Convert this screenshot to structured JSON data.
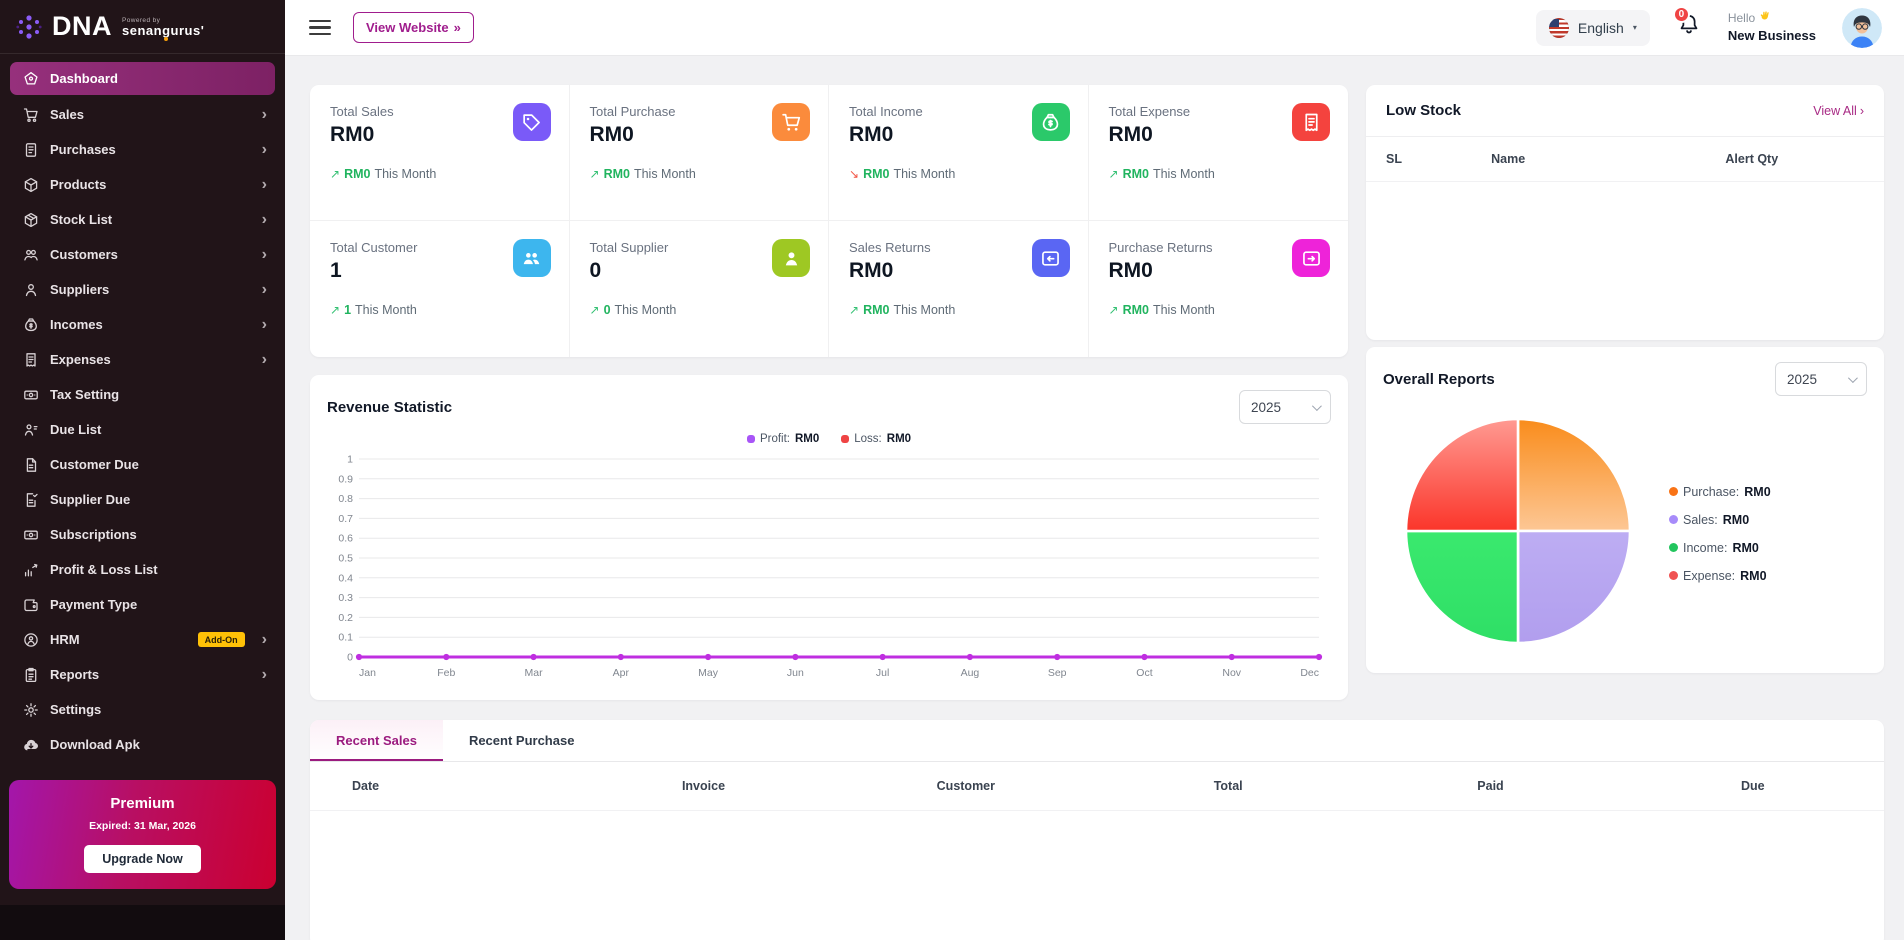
{
  "brand": {
    "name": "DNA",
    "powered_by": "Powered by",
    "powered_brand_pre": "senan",
    "powered_brand_g": "g",
    "powered_brand_post": "urus'"
  },
  "topbar": {
    "view_website_label": "View Website",
    "view_website_arrows": "»",
    "language": "English",
    "notification_badge": "0",
    "greeting": "Hello",
    "business_name": "New Business"
  },
  "sidebar": {
    "items": [
      {
        "label": "Dashboard",
        "icon": "dashboard-icon",
        "active": true,
        "chevron": false
      },
      {
        "label": "Sales",
        "icon": "cart-icon",
        "active": false,
        "chevron": true
      },
      {
        "label": "Purchases",
        "icon": "purchases-icon",
        "active": false,
        "chevron": true
      },
      {
        "label": "Products",
        "icon": "products-icon",
        "active": false,
        "chevron": true
      },
      {
        "label": "Stock List",
        "icon": "stock-list-icon",
        "active": false,
        "chevron": true
      },
      {
        "label": "Customers",
        "icon": "customers-icon",
        "active": false,
        "chevron": true
      },
      {
        "label": "Suppliers",
        "icon": "suppliers-icon",
        "active": false,
        "chevron": true
      },
      {
        "label": "Incomes",
        "icon": "incomes-icon",
        "active": false,
        "chevron": true
      },
      {
        "label": "Expenses",
        "icon": "expenses-icon",
        "active": false,
        "chevron": true
      },
      {
        "label": "Tax Setting",
        "icon": "tax-setting-icon",
        "active": false,
        "chevron": false
      },
      {
        "label": "Due List",
        "icon": "due-list-icon",
        "active": false,
        "chevron": false
      },
      {
        "label": "Customer Due",
        "icon": "customer-due-icon",
        "active": false,
        "chevron": false
      },
      {
        "label": "Supplier Due",
        "icon": "supplier-due-icon",
        "active": false,
        "chevron": false
      },
      {
        "label": "Subscriptions",
        "icon": "subscriptions-icon",
        "active": false,
        "chevron": false
      },
      {
        "label": "Profit & Loss List",
        "icon": "profit-loss-icon",
        "active": false,
        "chevron": false
      },
      {
        "label": "Payment Type",
        "icon": "payment-type-icon",
        "active": false,
        "chevron": false
      },
      {
        "label": "HRM",
        "icon": "hrm-icon",
        "active": false,
        "chevron": true,
        "badge": "Add-On"
      },
      {
        "label": "Reports",
        "icon": "reports-icon",
        "active": false,
        "chevron": true
      },
      {
        "label": "Settings",
        "icon": "settings-icon",
        "active": false,
        "chevron": false
      },
      {
        "label": "Download Apk",
        "icon": "download-icon",
        "active": false,
        "chevron": false
      }
    ],
    "premium": {
      "title": "Premium",
      "expired": "Expired: 31 Mar, 2026",
      "button_label": "Upgrade Now"
    }
  },
  "stats": [
    {
      "label": "Total Sales",
      "value": "RM0",
      "trend_value": "RM0",
      "trend_suffix": "This Month",
      "trend": "up",
      "icon": "tag-icon",
      "color": "#7a5af8"
    },
    {
      "label": "Total Purchase",
      "value": "RM0",
      "trend_value": "RM0",
      "trend_suffix": "This Month",
      "trend": "up",
      "icon": "cart-stat-icon",
      "color": "#fb8b3c"
    },
    {
      "label": "Total Income",
      "value": "RM0",
      "trend_value": "RM0",
      "trend_suffix": "This Month",
      "trend": "down",
      "icon": "money-bag-icon",
      "color": "#2bc96a"
    },
    {
      "label": "Total Expense",
      "value": "RM0",
      "trend_value": "RM0",
      "trend_suffix": "This Month",
      "trend": "up",
      "icon": "receipt-stat-icon",
      "color": "#f4433e"
    },
    {
      "label": "Total Customer",
      "value": "1",
      "trend_value": "1",
      "trend_suffix": "This Month",
      "trend": "up",
      "icon": "users-stat-icon",
      "color": "#3db6ee"
    },
    {
      "label": "Total Supplier",
      "value": "0",
      "trend_value": "0",
      "trend_suffix": "This Month",
      "trend": "up",
      "icon": "user-badge-icon",
      "color": "#9ec823"
    },
    {
      "label": "Sales Returns",
      "value": "RM0",
      "trend_value": "RM0",
      "trend_suffix": "This Month",
      "trend": "up",
      "icon": "sales-return-icon",
      "color": "#5a66f3"
    },
    {
      "label": "Purchase Returns",
      "value": "RM0",
      "trend_value": "RM0",
      "trend_suffix": "This Month",
      "trend": "up",
      "icon": "purchase-return-icon",
      "color": "#ee23d9"
    }
  ],
  "low_stock": {
    "title": "Low Stock",
    "view_all_label": "View All",
    "columns": [
      "SL",
      "Name",
      "Alert Qty"
    ],
    "rows": []
  },
  "revenue": {
    "title": "Revenue Statistic",
    "year": "2025"
  },
  "overall": {
    "title": "Overall Reports",
    "year": "2025"
  },
  "chart_data": [
    {
      "name": "revenue-statistic",
      "type": "line",
      "title": "Revenue Statistic",
      "x": [
        "Jan",
        "Feb",
        "Mar",
        "Apr",
        "May",
        "Jun",
        "Jul",
        "Aug",
        "Sep",
        "Oct",
        "Nov",
        "Dec"
      ],
      "series": [
        {
          "name": "Profit",
          "total_display": "RM0",
          "color": "#a855f7",
          "values": [
            0,
            0,
            0,
            0,
            0,
            0,
            0,
            0,
            0,
            0,
            0,
            0
          ]
        },
        {
          "name": "Loss",
          "total_display": "RM0",
          "color": "#ef4444",
          "values": [
            0,
            0,
            0,
            0,
            0,
            0,
            0,
            0,
            0,
            0,
            0,
            0
          ]
        }
      ],
      "line_color": "#bf2ee0",
      "ylim": [
        0,
        1
      ],
      "y_ticks": [
        1,
        0.9,
        0.8,
        0.7,
        0.6,
        0.5,
        0.4,
        0.3,
        0.2,
        0.1,
        0
      ],
      "grid": true,
      "legend_position": "top-center"
    },
    {
      "name": "overall-reports",
      "type": "pie",
      "title": "Overall Reports",
      "labels": [
        "Purchase",
        "Sales",
        "Income",
        "Expense"
      ],
      "values": [
        0,
        0,
        0,
        0
      ],
      "display_values": [
        "RM0",
        "RM0",
        "RM0",
        "RM0"
      ],
      "slice_percents": [
        25,
        25,
        25,
        25
      ],
      "colors": [
        "#f97316",
        "#a78bfa",
        "#22c55e",
        "#f05252"
      ],
      "legend_position": "right"
    }
  ],
  "recent": {
    "tabs": [
      {
        "label": "Recent Sales",
        "active": true
      },
      {
        "label": "Recent Purchase",
        "active": false
      }
    ],
    "columns": [
      "Date",
      "Invoice",
      "Customer",
      "Total",
      "Paid",
      "Due"
    ],
    "rows": []
  }
}
